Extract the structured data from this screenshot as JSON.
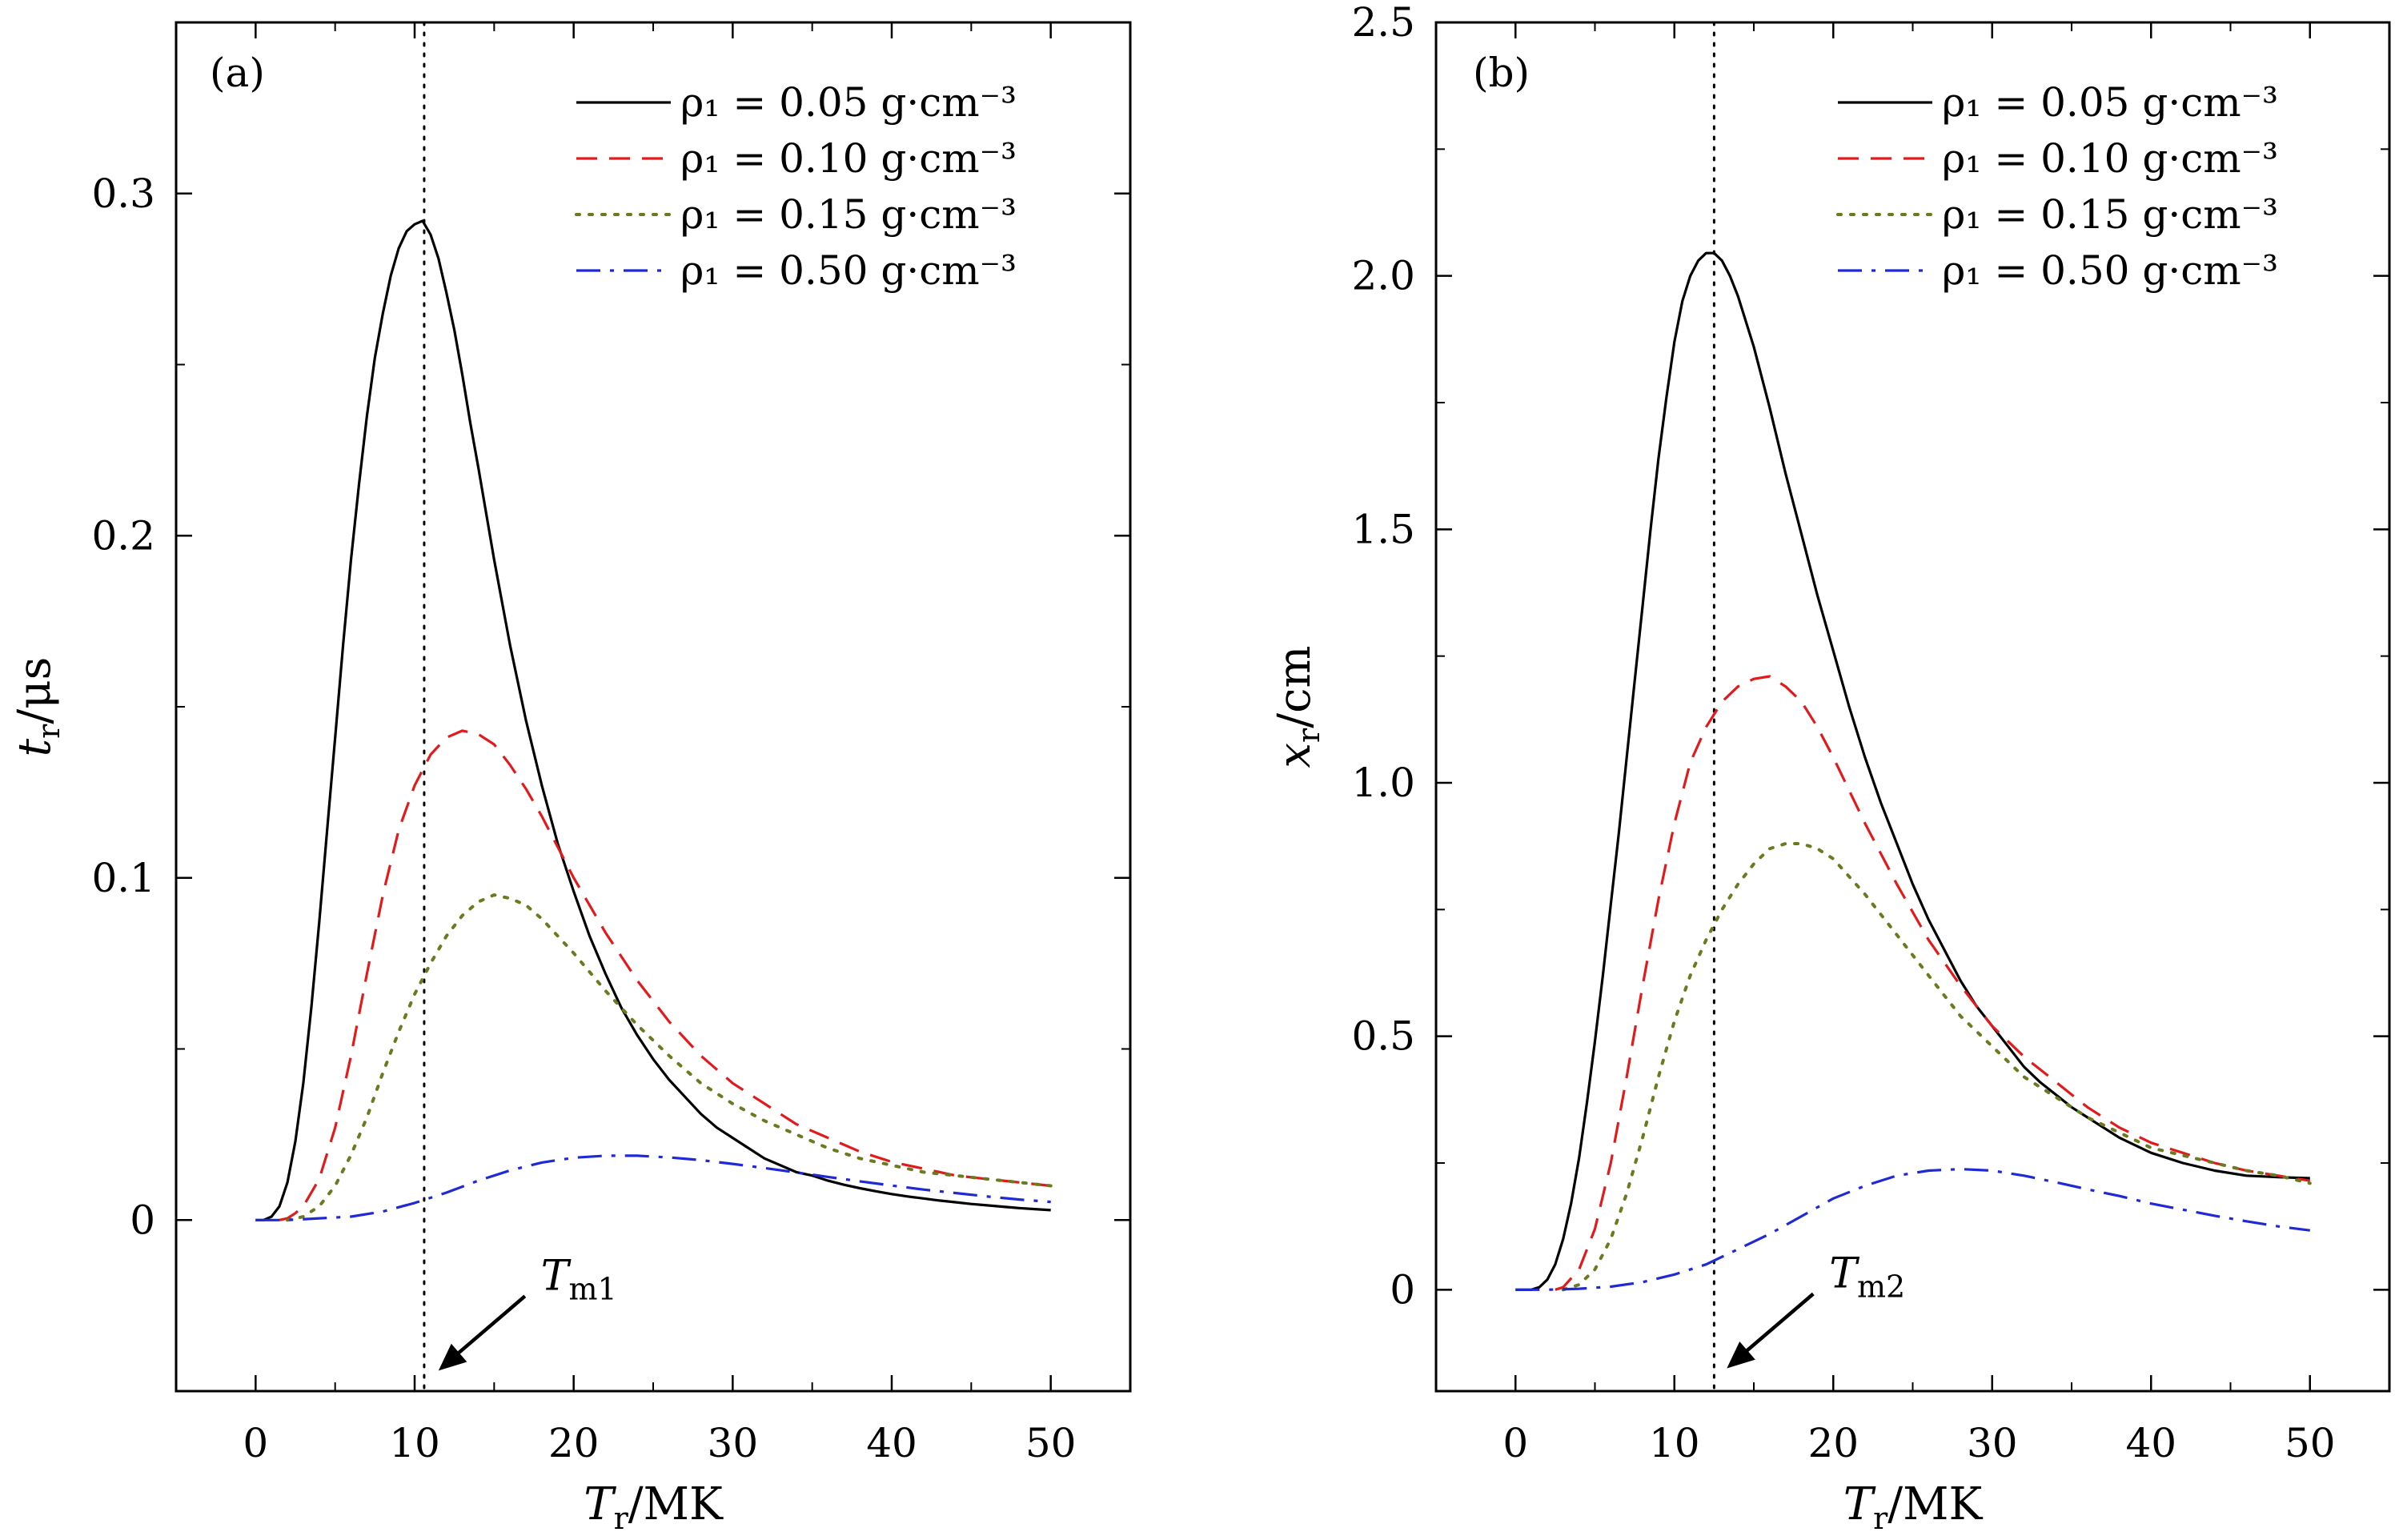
{
  "chart_data": [
    {
      "panel_label": "(a)",
      "type": "line",
      "xlabel": {
        "var": "T",
        "sub": "r",
        "unit": "/MK"
      },
      "ylabel": {
        "var": "t",
        "sub": "r",
        "unit": "/μs"
      },
      "xlim": [
        -5,
        55
      ],
      "ylim": [
        -0.05,
        0.35
      ],
      "xticks": [
        0,
        10,
        20,
        30,
        40,
        50
      ],
      "xtick_labels": [
        "0",
        "10",
        "20",
        "30",
        "40",
        "50"
      ],
      "yticks": [
        0,
        0.1,
        0.2,
        0.3
      ],
      "ytick_labels": [
        "0",
        "0.1",
        "0.2",
        "0.3"
      ],
      "legend_position": "top-right",
      "vline_x": 10.6,
      "annotation": {
        "var": "T",
        "sub": "m1",
        "arrow_to": [
          11.5,
          -0.044
        ]
      },
      "series": [
        {
          "name": "ρ₁ = 0.05 g·cm⁻³",
          "style": "solid",
          "color": "#000000",
          "x": [
            0,
            0.5,
            1,
            1.5,
            2,
            2.5,
            3,
            3.5,
            4,
            4.5,
            5,
            5.5,
            6,
            6.5,
            7,
            7.5,
            8,
            8.5,
            9,
            9.5,
            10,
            10.5,
            11,
            11.5,
            12,
            12.5,
            13,
            13.5,
            14,
            15,
            16,
            17,
            18,
            19,
            20,
            21,
            22,
            23,
            24,
            25,
            26,
            27,
            28,
            29,
            30,
            31,
            32,
            33,
            34,
            35,
            36,
            37,
            38,
            39,
            40,
            41,
            42,
            43,
            44,
            45,
            46,
            47,
            48,
            49,
            50
          ],
          "y": [
            0,
            0,
            0.001,
            0.004,
            0.011,
            0.023,
            0.04,
            0.062,
            0.087,
            0.114,
            0.141,
            0.168,
            0.193,
            0.215,
            0.235,
            0.252,
            0.265,
            0.276,
            0.284,
            0.289,
            0.291,
            0.292,
            0.288,
            0.281,
            0.271,
            0.26,
            0.247,
            0.233,
            0.22,
            0.193,
            0.168,
            0.146,
            0.127,
            0.11,
            0.096,
            0.083,
            0.072,
            0.062,
            0.054,
            0.047,
            0.041,
            0.036,
            0.031,
            0.027,
            0.024,
            0.021,
            0.018,
            0.016,
            0.014,
            0.013,
            0.0115,
            0.0103,
            0.0093,
            0.0084,
            0.0076,
            0.0069,
            0.0063,
            0.0057,
            0.0052,
            0.0047,
            0.0043,
            0.0039,
            0.0035,
            0.0032,
            0.0029
          ]
        },
        {
          "name": "ρ₁ = 0.10 g·cm⁻³",
          "style": "dashed",
          "color": "#e31a1c",
          "x": [
            1.5,
            2,
            2.5,
            3,
            4,
            5,
            6,
            7,
            8,
            9,
            10,
            11,
            12,
            13,
            14,
            15,
            16,
            17,
            18,
            19,
            20,
            22,
            24,
            26,
            28,
            30,
            32,
            34,
            36,
            38,
            40,
            42,
            44,
            46,
            48,
            50
          ],
          "y": [
            0,
            0.0005,
            0.002,
            0.004,
            0.012,
            0.027,
            0.048,
            0.072,
            0.095,
            0.114,
            0.127,
            0.136,
            0.141,
            0.143,
            0.142,
            0.139,
            0.133,
            0.126,
            0.118,
            0.109,
            0.1,
            0.084,
            0.07,
            0.058,
            0.048,
            0.04,
            0.034,
            0.028,
            0.024,
            0.02,
            0.017,
            0.015,
            0.013,
            0.012,
            0.011,
            0.01
          ]
        },
        {
          "name": "ρ₁ = 0.15 g·cm⁻³",
          "style": "dotted",
          "color": "#6b7a1e",
          "x": [
            2,
            3,
            4,
            5,
            6,
            7,
            8,
            9,
            10,
            11,
            12,
            13,
            14,
            15,
            16,
            17,
            18,
            19,
            20,
            22,
            24,
            26,
            28,
            30,
            32,
            34,
            36,
            38,
            40,
            42,
            44,
            46,
            48,
            50
          ],
          "y": [
            0,
            0.001,
            0.004,
            0.01,
            0.019,
            0.03,
            0.043,
            0.055,
            0.066,
            0.075,
            0.083,
            0.089,
            0.093,
            0.095,
            0.094,
            0.092,
            0.088,
            0.083,
            0.078,
            0.067,
            0.057,
            0.048,
            0.04,
            0.034,
            0.029,
            0.025,
            0.021,
            0.018,
            0.016,
            0.014,
            0.013,
            0.012,
            0.011,
            0.01
          ]
        },
        {
          "name": "ρ₁ = 0.50 g·cm⁻³",
          "style": "dashdot",
          "color": "#1f2ad6",
          "x": [
            0,
            2,
            4,
            6,
            8,
            10,
            12,
            14,
            16,
            18,
            20,
            22,
            24,
            26,
            28,
            30,
            32,
            34,
            36,
            38,
            40,
            42,
            44,
            46,
            48,
            50
          ],
          "y": [
            0,
            0,
            0.0005,
            0.001,
            0.0025,
            0.005,
            0.008,
            0.0115,
            0.0145,
            0.0168,
            0.0182,
            0.0188,
            0.0188,
            0.0183,
            0.0175,
            0.0164,
            0.0152,
            0.0139,
            0.0126,
            0.0113,
            0.0101,
            0.0089,
            0.0079,
            0.0069,
            0.006,
            0.0053
          ]
        }
      ]
    },
    {
      "panel_label": "(b)",
      "type": "line",
      "xlabel": {
        "var": "T",
        "sub": "r",
        "unit": "/MK"
      },
      "ylabel": {
        "var": "x",
        "sub": "r",
        "unit": "/cm"
      },
      "xlim": [
        -5,
        55
      ],
      "ylim": [
        -0.2,
        2.5
      ],
      "xticks": [
        0,
        10,
        20,
        30,
        40,
        50
      ],
      "xtick_labels": [
        "0",
        "10",
        "20",
        "30",
        "40",
        "50"
      ],
      "yticks": [
        0,
        0.5,
        1.0,
        1.5,
        2.0,
        2.5
      ],
      "ytick_labels": [
        "0",
        "0.5",
        "1.0",
        "1.5",
        "2.0",
        "2.5"
      ],
      "legend_position": "top-right",
      "vline_x": 12.5,
      "annotation": {
        "var": "T",
        "sub": "m2",
        "arrow_to": [
          13.3,
          -0.155
        ]
      },
      "series": [
        {
          "name": "ρ₁ = 0.05 g·cm⁻³",
          "style": "solid",
          "color": "#000000",
          "x": [
            0,
            1,
            1.5,
            2,
            2.5,
            3,
            3.5,
            4,
            4.5,
            5,
            5.5,
            6,
            6.5,
            7,
            7.5,
            8,
            8.5,
            9,
            9.5,
            10,
            10.5,
            11,
            11.5,
            12,
            12.5,
            13,
            13.5,
            14,
            15,
            16,
            17,
            18,
            19,
            20,
            21,
            22,
            23,
            24,
            25,
            26,
            27,
            28,
            29,
            30,
            31,
            32,
            33,
            34,
            35,
            36,
            37,
            38,
            39,
            40,
            42,
            44,
            46,
            48,
            50
          ],
          "y": [
            0,
            0,
            0.005,
            0.02,
            0.05,
            0.1,
            0.17,
            0.26,
            0.37,
            0.49,
            0.62,
            0.76,
            0.9,
            1.05,
            1.2,
            1.35,
            1.5,
            1.64,
            1.76,
            1.87,
            1.95,
            2.0,
            2.03,
            2.045,
            2.045,
            2.03,
            2.0,
            1.96,
            1.86,
            1.74,
            1.61,
            1.49,
            1.37,
            1.26,
            1.15,
            1.05,
            0.96,
            0.88,
            0.8,
            0.73,
            0.67,
            0.61,
            0.56,
            0.52,
            0.48,
            0.44,
            0.41,
            0.385,
            0.36,
            0.34,
            0.32,
            0.3,
            0.285,
            0.27,
            0.25,
            0.235,
            0.225,
            0.222,
            0.22
          ]
        },
        {
          "name": "ρ₁ = 0.10 g·cm⁻³",
          "style": "dashed",
          "color": "#e31a1c",
          "x": [
            2.5,
            3,
            4,
            5,
            6,
            7,
            8,
            9,
            10,
            11,
            12,
            13,
            14,
            15,
            16,
            17,
            18,
            19,
            20,
            22,
            24,
            26,
            28,
            30,
            32,
            34,
            36,
            38,
            40,
            42,
            44,
            46,
            48,
            50
          ],
          "y": [
            0,
            0.005,
            0.04,
            0.12,
            0.25,
            0.42,
            0.6,
            0.77,
            0.92,
            1.04,
            1.11,
            1.16,
            1.19,
            1.205,
            1.21,
            1.19,
            1.16,
            1.11,
            1.05,
            0.92,
            0.8,
            0.69,
            0.6,
            0.52,
            0.46,
            0.41,
            0.36,
            0.32,
            0.29,
            0.27,
            0.25,
            0.235,
            0.225,
            0.215
          ]
        },
        {
          "name": "ρ₁ = 0.15 g·cm⁻³",
          "style": "dotted",
          "color": "#6b7a1e",
          "x": [
            3,
            4,
            5,
            6,
            7,
            8,
            9,
            10,
            11,
            12,
            13,
            14,
            15,
            16,
            17,
            18,
            19,
            20,
            22,
            24,
            26,
            28,
            30,
            32,
            34,
            36,
            38,
            40,
            42,
            44,
            46,
            48,
            50
          ],
          "y": [
            0,
            0.01,
            0.04,
            0.1,
            0.19,
            0.3,
            0.42,
            0.53,
            0.62,
            0.69,
            0.75,
            0.8,
            0.84,
            0.87,
            0.88,
            0.88,
            0.87,
            0.85,
            0.78,
            0.7,
            0.62,
            0.54,
            0.48,
            0.42,
            0.38,
            0.34,
            0.31,
            0.28,
            0.265,
            0.25,
            0.235,
            0.225,
            0.21
          ]
        },
        {
          "name": "ρ₁ = 0.50 g·cm⁻³",
          "style": "dashdot",
          "color": "#1f2ad6",
          "x": [
            0,
            2,
            4,
            6,
            8,
            10,
            12,
            14,
            16,
            18,
            20,
            22,
            24,
            26,
            28,
            30,
            32,
            34,
            36,
            38,
            40,
            42,
            44,
            46,
            48,
            50
          ],
          "y": [
            0,
            0,
            0.002,
            0.006,
            0.015,
            0.03,
            0.05,
            0.08,
            0.11,
            0.145,
            0.18,
            0.205,
            0.225,
            0.235,
            0.238,
            0.235,
            0.225,
            0.212,
            0.198,
            0.185,
            0.17,
            0.158,
            0.146,
            0.135,
            0.125,
            0.117
          ]
        }
      ]
    }
  ]
}
